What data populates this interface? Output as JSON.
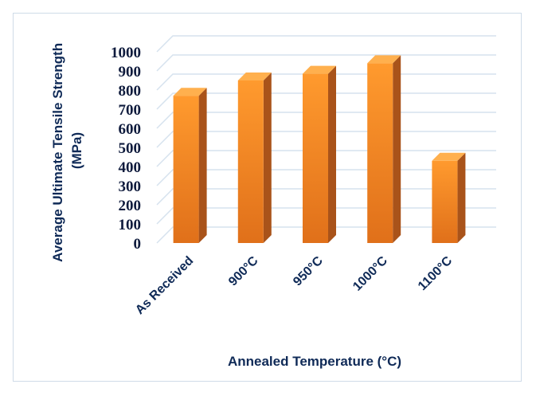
{
  "chart_data": {
    "type": "bar",
    "categories": [
      "As Received",
      "900°C",
      "950°C",
      "1000°C",
      "1100°C"
    ],
    "values": [
      770,
      850,
      885,
      940,
      430
    ],
    "title": "",
    "xlabel": "Annealed Temperature (°C)",
    "ylabel_lines": [
      "Average Ultimate Tensile Strength",
      "(MPa)"
    ],
    "ylim": [
      0,
      1000
    ],
    "yticks": [
      0,
      100,
      200,
      300,
      400,
      500,
      600,
      700,
      800,
      900,
      1000
    ],
    "grid": true,
    "legend": "none",
    "style": "3d-column",
    "colors": {
      "bar_top": "#ff9a2e",
      "bar_bottom": "#e0701a",
      "bar_side": "#a9531a",
      "grid": "#d6e2ee",
      "text": "#0f2a57"
    }
  }
}
